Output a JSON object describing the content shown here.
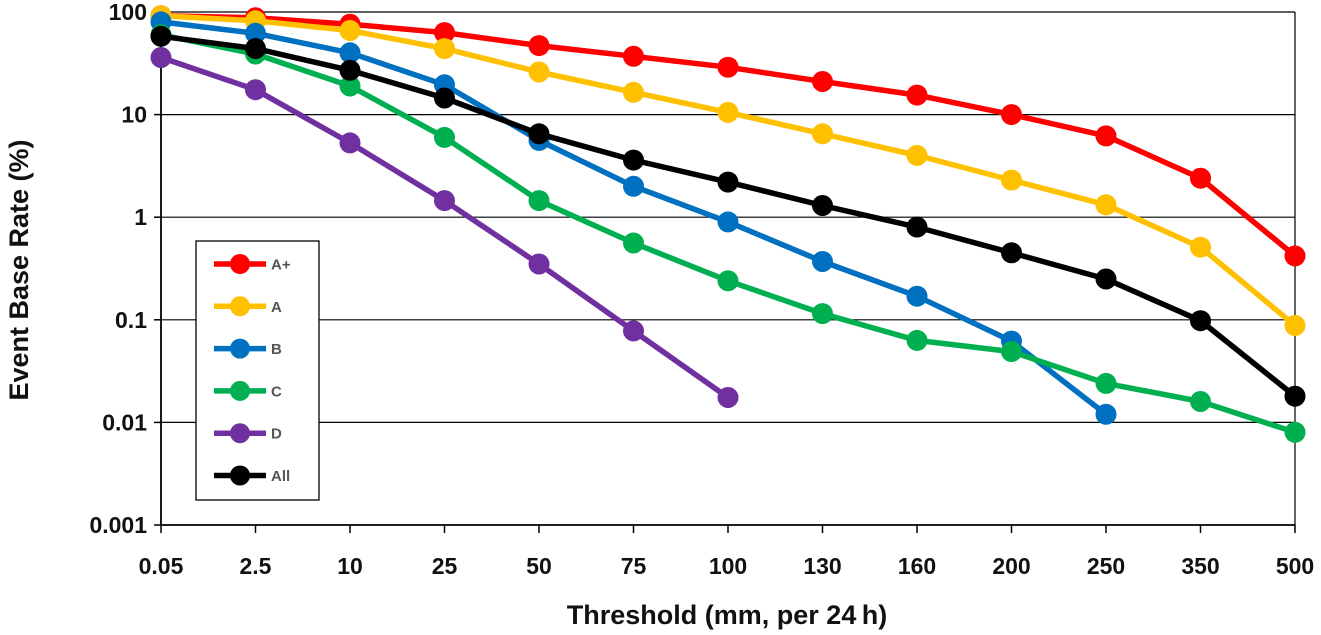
{
  "chart_data": {
    "type": "line",
    "title": "",
    "xlabel": "Threshold (mm, per 24 h)",
    "ylabel": "Event Base Rate (%)",
    "yscale": "log",
    "ylim": [
      0.001,
      100
    ],
    "y_ticks": [
      "0.001",
      "0.01",
      "0.1",
      "1",
      "10",
      "100"
    ],
    "grid": true,
    "legend_position": "bottom-left",
    "categories": [
      "0.05",
      "2.5",
      "10",
      "25",
      "50",
      "75",
      "100",
      "130",
      "160",
      "200",
      "250",
      "350",
      "500"
    ],
    "series": [
      {
        "name": "A+",
        "color": "#ff0000",
        "values": [
          92,
          88,
          76,
          63,
          47,
          37,
          29,
          21,
          15.5,
          10,
          6.2,
          2.4,
          0.42
        ]
      },
      {
        "name": "A",
        "color": "#ffc000",
        "values": [
          92,
          82,
          66,
          44,
          26,
          16.5,
          10.5,
          6.5,
          4,
          2.3,
          1.32,
          0.51,
          0.088
        ]
      },
      {
        "name": "B",
        "color": "#0070c0",
        "values": [
          80,
          62,
          40,
          19.5,
          5.6,
          2,
          0.9,
          0.37,
          0.17,
          0.062,
          0.012,
          null,
          null
        ]
      },
      {
        "name": "C",
        "color": "#00b050",
        "values": [
          60,
          39,
          19,
          6,
          1.45,
          0.56,
          0.24,
          0.115,
          0.063,
          0.049,
          0.024,
          0.016,
          0.008
        ]
      },
      {
        "name": "D",
        "color": "#7030a0",
        "values": [
          36,
          17.5,
          5.3,
          1.45,
          0.35,
          0.078,
          0.0175,
          null,
          null,
          null,
          null,
          null,
          null
        ]
      },
      {
        "name": "All",
        "color": "#000000",
        "values": [
          58,
          44,
          27,
          14.5,
          6.5,
          3.6,
          2.2,
          1.3,
          0.8,
          0.45,
          0.25,
          0.098,
          0.018
        ]
      }
    ]
  }
}
